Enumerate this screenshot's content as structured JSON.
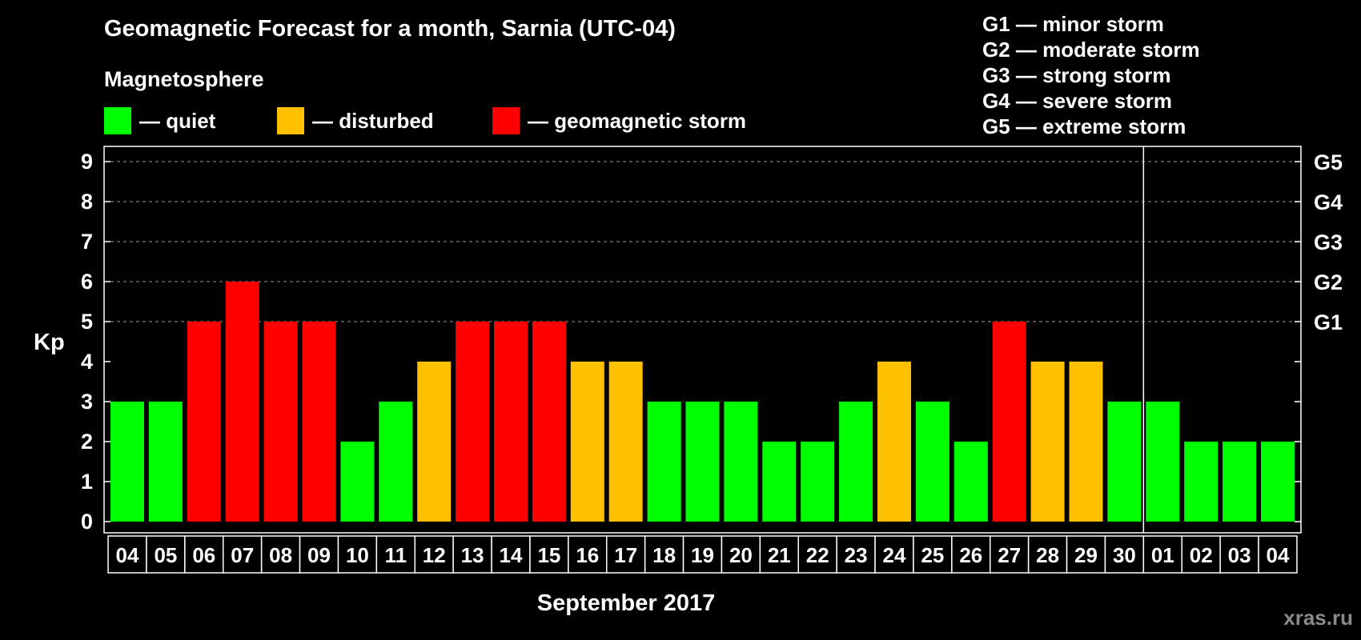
{
  "header": {
    "title": "Geomagnetic Forecast for a month, Sarnia (UTC-04)",
    "subtitle": "Magnetosphere"
  },
  "legend": [
    {
      "label": "— quiet",
      "color": "#00ff00"
    },
    {
      "label": "— disturbed",
      "color": "#ffc000"
    },
    {
      "label": "— geomagnetic storm",
      "color": "#ff0000"
    }
  ],
  "storm_levels": [
    "G1 — minor storm",
    "G2 — moderate storm",
    "G3 — strong storm",
    "G4 — severe storm",
    "G5 — extreme storm"
  ],
  "chart_data": {
    "type": "bar",
    "xlabel": "September 2017",
    "ylabel": "Kp",
    "ylim": [
      0,
      9
    ],
    "yticks": [
      "0",
      "1",
      "2",
      "3",
      "4",
      "5",
      "6",
      "7",
      "8",
      "9"
    ],
    "right_axis": [
      {
        "value": 5,
        "label": "G1"
      },
      {
        "value": 6,
        "label": "G2"
      },
      {
        "value": 7,
        "label": "G3"
      },
      {
        "value": 8,
        "label": "G4"
      },
      {
        "value": 9,
        "label": "G5"
      }
    ],
    "grid": "dashed horizontal at Kp 5–9",
    "categories": [
      "04",
      "05",
      "06",
      "07",
      "08",
      "09",
      "10",
      "11",
      "12",
      "13",
      "14",
      "15",
      "16",
      "17",
      "18",
      "19",
      "20",
      "21",
      "22",
      "23",
      "24",
      "25",
      "26",
      "27",
      "28",
      "29",
      "30",
      "01",
      "02",
      "03",
      "04"
    ],
    "values": [
      3,
      3,
      5,
      6,
      5,
      5,
      2,
      3,
      4,
      5,
      5,
      5,
      4,
      4,
      3,
      3,
      3,
      2,
      2,
      3,
      4,
      3,
      2,
      5,
      4,
      4,
      3,
      3,
      2,
      2,
      2
    ],
    "colors": {
      "quiet": "#00ff00",
      "disturbed": "#ffc000",
      "storm": "#ff0000"
    },
    "month_divider_after": "30"
  },
  "watermark": "xras.ru"
}
